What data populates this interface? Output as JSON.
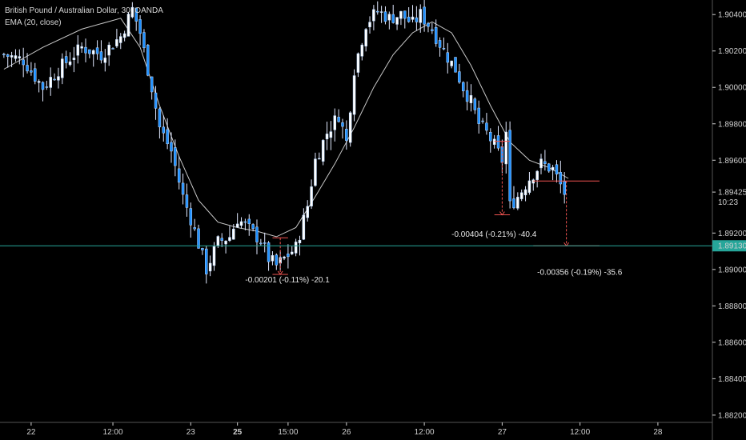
{
  "window": {
    "symbol_title": "British Pound / Australian Dollar, 30, OANDA",
    "indicator_label": "EMA (20, close)"
  },
  "colors": {
    "background": "#000000",
    "candle_body": "#b8d8ff",
    "candle_bull_body": "#ffffff",
    "candle_bear_body": "#1e90ff",
    "wick": "#e0e8ff",
    "ema": "#c8c8c8",
    "price_line": "#26a69a",
    "measure_line": "#ef5350",
    "axis_text": "#d0d0d0",
    "axis_line": "#555555"
  },
  "chart_data": {
    "type": "candlestick",
    "ylim": [
      1.8816,
      1.9048
    ],
    "y_ticks": [
      "1.90400",
      "1.90200",
      "1.90000",
      "1.89800",
      "1.89600",
      "1.89200",
      "1.89000",
      "1.88800",
      "1.88600",
      "1.88400",
      "1.88200"
    ],
    "y_tick_values": [
      1.904,
      1.902,
      1.9,
      1.898,
      1.896,
      1.892,
      1.89,
      1.888,
      1.886,
      1.884,
      1.882
    ],
    "x_ticks": [
      "22",
      "12:00",
      "23",
      "25",
      "15:00",
      "26",
      "12:00",
      "27",
      "12:00",
      "28"
    ],
    "x_tick_index": [
      7,
      28,
      48,
      60,
      73,
      88,
      108,
      128,
      148,
      168
    ],
    "bold_ticks": [
      "25"
    ],
    "current_price": {
      "value": 1.89425,
      "label": "1.89425",
      "countdown": "10:23"
    },
    "price_line": {
      "value": 1.8913,
      "label": "1.89130"
    },
    "ema": {
      "name": "EMA (20, close)",
      "index": [
        0,
        10,
        20,
        30,
        35,
        40,
        45,
        50,
        55,
        60,
        65,
        70,
        75,
        80,
        85,
        90,
        95,
        100,
        105,
        110,
        115,
        120,
        125,
        130,
        135,
        140,
        145
      ],
      "values": [
        1.901,
        1.9022,
        1.9032,
        1.9038,
        1.9022,
        1.899,
        1.8962,
        1.8938,
        1.8926,
        1.8923,
        1.8921,
        1.8918,
        1.8923,
        1.894,
        1.8958,
        1.8978,
        1.9,
        1.9018,
        1.903,
        1.9036,
        1.903,
        1.9012,
        1.899,
        1.897,
        1.896,
        1.8956,
        1.895
      ]
    },
    "series_close_anchors": {
      "index": [
        0,
        5,
        10,
        15,
        20,
        25,
        30,
        33,
        35,
        38,
        40,
        43,
        46,
        48,
        50,
        52,
        55,
        58,
        60,
        63,
        66,
        68,
        70,
        72,
        75,
        78,
        80,
        83,
        86,
        88,
        90,
        93,
        96,
        99,
        102,
        105,
        107,
        110,
        113,
        116,
        118,
        120,
        122,
        124,
        126,
        128,
        129,
        130,
        132,
        135,
        138,
        141,
        144
      ],
      "values": [
        1.9018,
        1.9015,
        1.9,
        1.9012,
        1.9022,
        1.9018,
        1.9028,
        1.9043,
        1.903,
        1.9,
        1.8978,
        1.8965,
        1.894,
        1.8928,
        1.8914,
        1.89,
        1.8915,
        1.8918,
        1.8928,
        1.8922,
        1.8916,
        1.8906,
        1.8902,
        1.8906,
        1.8912,
        1.8935,
        1.896,
        1.8975,
        1.8985,
        1.897,
        1.901,
        1.9035,
        1.9042,
        1.9038,
        1.904,
        1.9035,
        1.904,
        1.9032,
        1.902,
        1.901,
        1.9,
        1.8992,
        1.898,
        1.8975,
        1.8968,
        1.896,
        1.8975,
        1.8935,
        1.894,
        1.895,
        1.8958,
        1.8955,
        1.8942
      ]
    },
    "measurements": [
      {
        "label": "-0.00201 (-0.11%) -20.1",
        "from_index": 69,
        "to_index": 73,
        "start_value": 1.89174,
        "end_value": 1.88973,
        "label_index": 62,
        "label_value": 1.8893
      },
      {
        "label": "-0.00404 (-0.21%) -40.4",
        "from_index": 126,
        "to_index": 130,
        "start_value": 1.89704,
        "end_value": 1.893,
        "label_index": 115,
        "label_value": 1.8918
      },
      {
        "label": "-0.00356 (-0.19%) -35.6",
        "from_index": 136,
        "to_index": 153,
        "start_value": 1.89486,
        "end_value": 1.8913,
        "label_index": 137,
        "label_value": 1.8897
      }
    ]
  }
}
